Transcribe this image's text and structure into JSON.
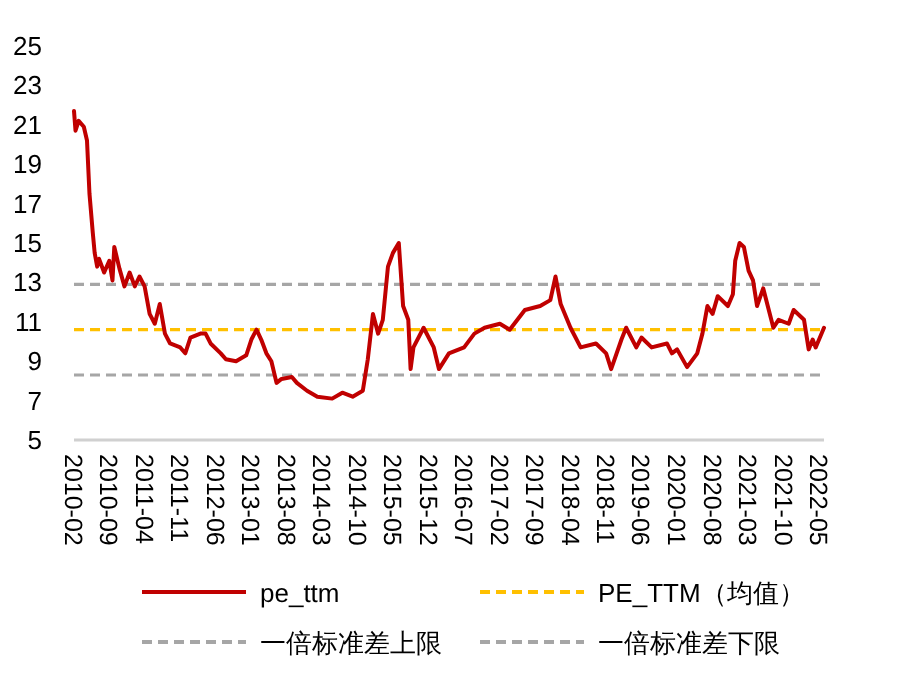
{
  "chart_data": {
    "type": "line",
    "x": [
      "2010-02-01",
      "2010-02-10",
      "2010-03-01",
      "2010-04-01",
      "2010-04-20",
      "2010-05-05",
      "2010-05-25",
      "2010-06-05",
      "2010-06-20",
      "2010-07-01",
      "2010-08-01",
      "2010-09-01",
      "2010-09-20",
      "2010-10-01",
      "2010-11-01",
      "2010-12-01",
      "2011-01-01",
      "2011-02-01",
      "2011-03-01",
      "2011-04-01",
      "2011-05-01",
      "2011-06-01",
      "2011-07-01",
      "2011-08-01",
      "2011-09-01",
      "2011-11-01",
      "2011-12-01",
      "2012-01-01",
      "2012-03-01",
      "2012-04-01",
      "2012-05-01",
      "2012-07-01",
      "2012-08-01",
      "2012-10-01",
      "2012-12-01",
      "2013-01-01",
      "2013-02-01",
      "2013-03-01",
      "2013-04-01",
      "2013-05-01",
      "2013-06-01",
      "2013-07-01",
      "2013-09-01",
      "2013-10-01",
      "2013-12-01",
      "2014-02-01",
      "2014-05-01",
      "2014-07-01",
      "2014-09-01",
      "2014-11-01",
      "2014-12-01",
      "2015-01-01",
      "2015-02-01",
      "2015-03-01",
      "2015-04-01",
      "2015-05-01",
      "2015-06-05",
      "2015-07-01",
      "2015-08-01",
      "2015-08-15",
      "2015-09-01",
      "2015-11-01",
      "2016-01-01",
      "2016-02-01",
      "2016-04-01",
      "2016-07-01",
      "2016-09-01",
      "2016-11-01",
      "2017-02-01",
      "2017-04-01",
      "2017-07-01",
      "2017-10-01",
      "2017-12-01",
      "2018-01-01",
      "2018-02-01",
      "2018-04-01",
      "2018-06-01",
      "2018-09-01",
      "2018-11-01",
      "2018-12-01",
      "2019-02-01",
      "2019-03-01",
      "2019-05-01",
      "2019-06-01",
      "2019-08-01",
      "2019-11-01",
      "2019-12-01",
      "2020-01-01",
      "2020-03-01",
      "2020-05-01",
      "2020-06-01",
      "2020-07-01",
      "2020-08-01",
      "2020-09-01",
      "2020-11-01",
      "2020-12-01",
      "2020-12-15",
      "2021-01-10",
      "2021-02-05",
      "2021-03-05",
      "2021-04-01",
      "2021-04-25",
      "2021-06-01",
      "2021-08-01",
      "2021-09-01",
      "2021-11-01",
      "2021-12-01",
      "2022-02-01",
      "2022-03-01",
      "2022-03-25",
      "2022-04-12",
      "2022-06-01"
    ],
    "series": [
      {
        "name": "pe_ttm",
        "color": "#c00000",
        "values": [
          21.7,
          20.7,
          21.2,
          20.9,
          20.2,
          17.5,
          15.5,
          14.5,
          13.8,
          14.2,
          13.5,
          14.1,
          13.1,
          14.8,
          13.7,
          12.8,
          13.5,
          12.8,
          13.3,
          12.8,
          11.4,
          10.9,
          11.9,
          10.4,
          9.9,
          9.7,
          9.4,
          10.2,
          10.4,
          10.4,
          9.9,
          9.4,
          9.1,
          9.0,
          9.3,
          10.1,
          10.6,
          10.1,
          9.4,
          9.0,
          7.9,
          8.1,
          8.2,
          7.9,
          7.5,
          7.2,
          7.1,
          7.4,
          7.2,
          7.5,
          9.1,
          11.4,
          10.4,
          11.1,
          13.8,
          14.5,
          15.0,
          11.8,
          11.1,
          8.6,
          9.7,
          10.7,
          9.7,
          8.6,
          9.4,
          9.7,
          10.4,
          10.7,
          10.9,
          10.6,
          11.6,
          11.8,
          12.1,
          13.3,
          11.9,
          10.7,
          9.7,
          9.9,
          9.4,
          8.6,
          10.1,
          10.7,
          9.7,
          10.2,
          9.7,
          9.9,
          9.4,
          9.6,
          8.7,
          9.4,
          10.4,
          11.8,
          11.4,
          12.3,
          11.8,
          12.4,
          14.1,
          15.0,
          14.8,
          13.6,
          13.1,
          11.8,
          12.7,
          10.7,
          11.1,
          10.9,
          11.6,
          11.1,
          9.6,
          10.1,
          9.7,
          10.7
        ]
      }
    ],
    "ref_lines": [
      {
        "axis": "y",
        "value": 10.6,
        "label": "PE_TTM（均值）",
        "color": "#ffc000",
        "line_style": "dashed"
      },
      {
        "axis": "y",
        "value": 12.9,
        "label": "一倍标准差上限",
        "color": "#a6a6a6",
        "line_style": "dashed"
      },
      {
        "axis": "y",
        "value": 8.3,
        "label": "一倍标准差下限",
        "color": "#a6a6a6",
        "line_style": "dashed"
      }
    ],
    "xlim": [
      "2010-02-01",
      "2022-06-01"
    ],
    "xticks": [
      "2010-02",
      "2010-09",
      "2011-04",
      "2011-11",
      "2012-06",
      "2013-01",
      "2013-08",
      "2014-03",
      "2014-10",
      "2015-05",
      "2015-12",
      "2016-07",
      "2017-02",
      "2017-09",
      "2018-04",
      "2018-11",
      "2019-06",
      "2020-01",
      "2020-08",
      "2021-03",
      "2021-10",
      "2022-05"
    ],
    "ylim": [
      5,
      25
    ],
    "yticks": [
      5,
      7,
      9,
      11,
      13,
      15,
      17,
      19,
      21,
      23,
      25
    ],
    "legend": "bottom"
  }
}
